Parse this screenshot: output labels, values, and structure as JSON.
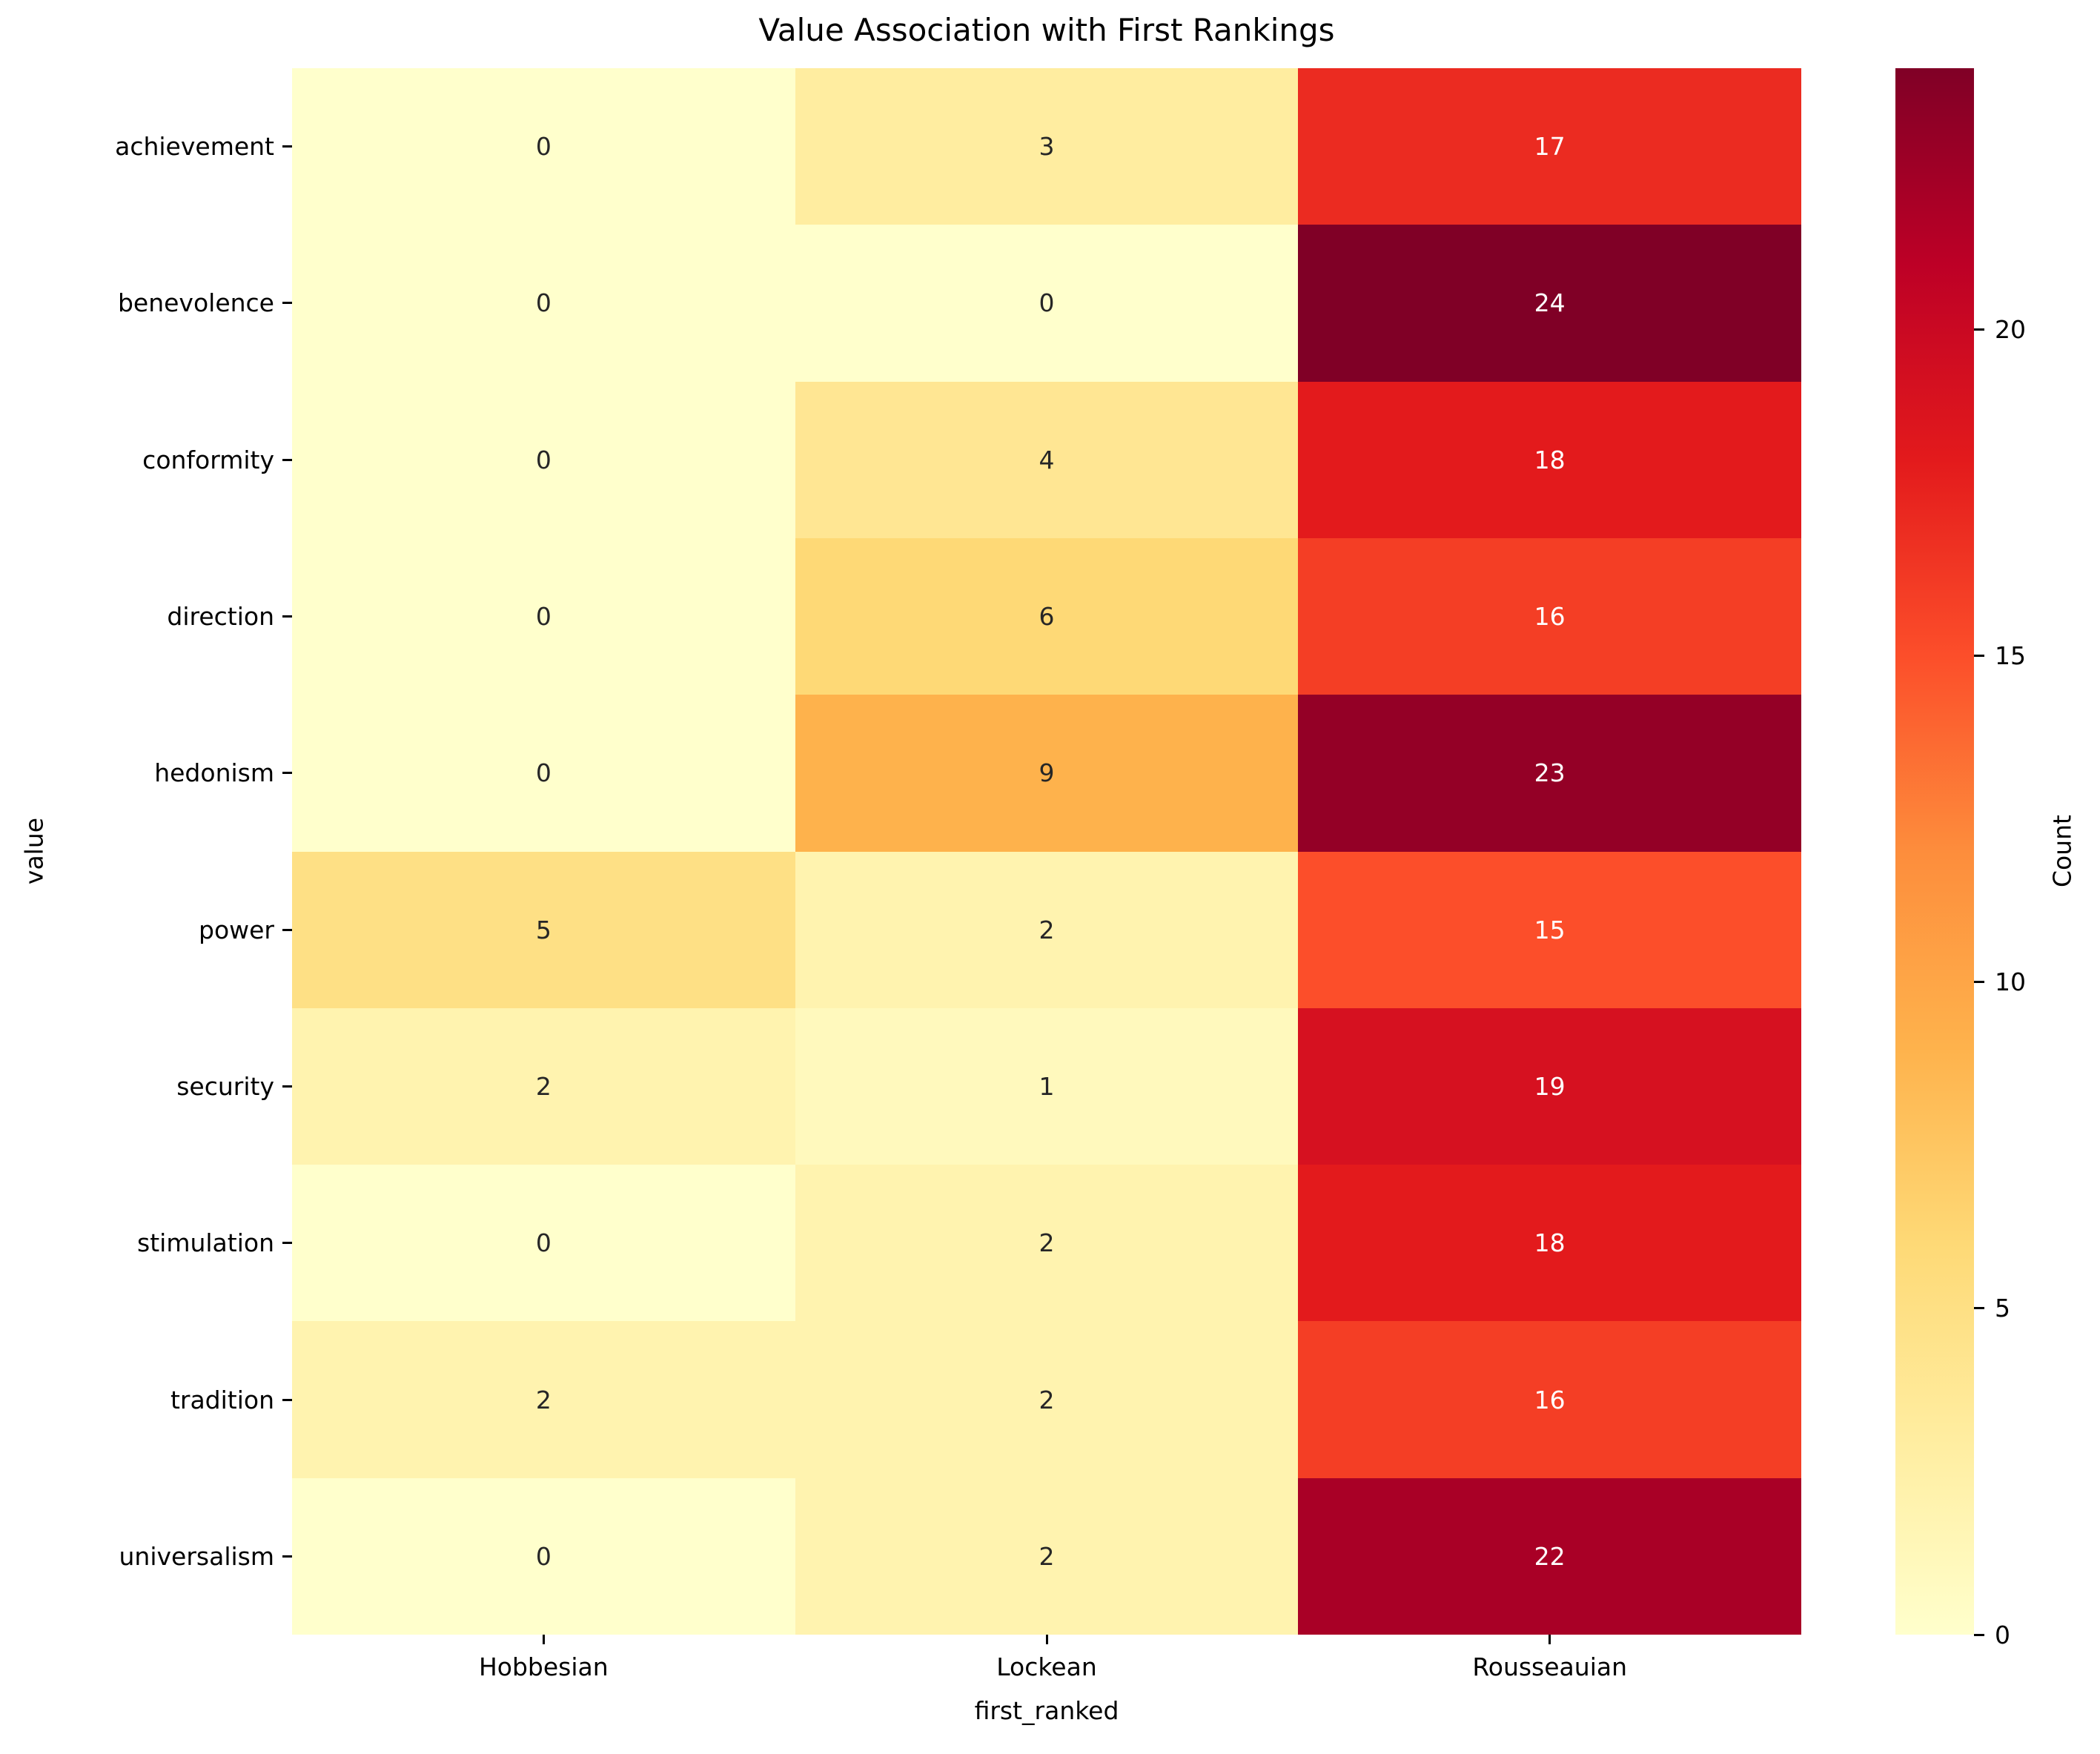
{
  "title": "Value Association with First Rankings",
  "chart_data": {
    "type": "heatmap",
    "title": "Value Association with First Rankings",
    "xlabel": "first_ranked",
    "ylabel": "value",
    "columns": [
      "Hobbesian",
      "Lockean",
      "Rousseauian"
    ],
    "rows": [
      "achievement",
      "benevolence",
      "conformity",
      "direction",
      "hedonism",
      "power",
      "security",
      "stimulation",
      "tradition",
      "universalism"
    ],
    "values": [
      [
        0,
        3,
        17
      ],
      [
        0,
        0,
        24
      ],
      [
        0,
        4,
        18
      ],
      [
        0,
        6,
        16
      ],
      [
        0,
        9,
        23
      ],
      [
        5,
        2,
        15
      ],
      [
        2,
        1,
        19
      ],
      [
        0,
        2,
        18
      ],
      [
        2,
        2,
        16
      ],
      [
        0,
        2,
        22
      ]
    ],
    "cell_colors": [
      [
        "#ffffcc",
        "#ffeda0",
        "#eb2b21"
      ],
      [
        "#ffffcc",
        "#ffffcc",
        "#800026"
      ],
      [
        "#ffffcc",
        "#ffe693",
        "#e31a1c"
      ],
      [
        "#ffffcc",
        "#fed976",
        "#f43e25"
      ],
      [
        "#ffffcc",
        "#feb24c",
        "#940026"
      ],
      [
        "#fee085",
        "#fff3af",
        "#fc4e2a"
      ],
      [
        "#fff3af",
        "#fff9bd",
        "#d61120"
      ],
      [
        "#ffffcc",
        "#fff3af",
        "#e31a1c"
      ],
      [
        "#fff3af",
        "#fff3af",
        "#f43e25"
      ],
      [
        "#ffffcc",
        "#fff3af",
        "#a90026"
      ]
    ],
    "annot_color_dark": "#262626",
    "annot_color_light": "#ffffff",
    "colormap": {
      "name": "YlOrRd",
      "stops": [
        "#ffffcc",
        "#ffeda0",
        "#fed976",
        "#feb24c",
        "#fd8d3c",
        "#fc4e2a",
        "#e31a1c",
        "#bd0026",
        "#800026"
      ]
    },
    "colorbar": {
      "label": "Count",
      "ticks": [
        0,
        5,
        10,
        15,
        20
      ],
      "vmin": 0,
      "vmax": 24
    }
  }
}
